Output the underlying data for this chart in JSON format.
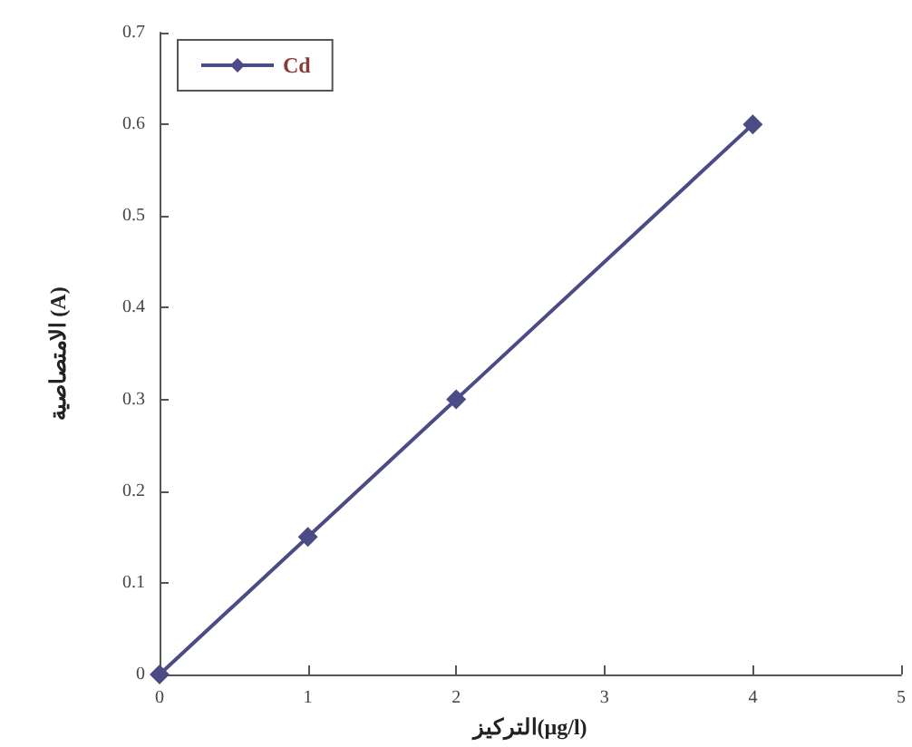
{
  "chart_data": {
    "type": "line",
    "xlabel": "التركيز(µg/l)",
    "ylabel": "الامتصاصية (A)",
    "x": [
      0,
      1,
      2,
      4
    ],
    "series": [
      {
        "name": "Cd",
        "color": "#4b4b86",
        "values": [
          0,
          0.15,
          0.3,
          0.6
        ]
      }
    ],
    "xlim": [
      0,
      5
    ],
    "xticks": [
      0,
      1,
      2,
      3,
      4,
      5
    ],
    "ylim": [
      0,
      0.7
    ],
    "yticks": [
      0,
      0.1,
      0.2,
      0.3,
      0.4,
      0.5,
      0.6,
      0.7
    ],
    "grid": false,
    "legend": "top left",
    "marker": "diamond",
    "line_style": "solid"
  }
}
